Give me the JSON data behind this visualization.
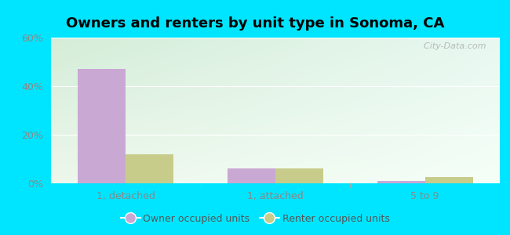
{
  "title": "Owners and renters by unit type in Sonoma, CA",
  "categories": [
    "1, detached",
    "1, attached",
    "5 to 9"
  ],
  "owner_values": [
    47.0,
    6.0,
    1.0
  ],
  "renter_values": [
    12.0,
    6.0,
    2.5
  ],
  "owner_color": "#c9a8d4",
  "renter_color": "#c8cc8a",
  "ylim": [
    0,
    60
  ],
  "yticks": [
    0,
    20,
    40,
    60
  ],
  "ytick_labels": [
    "0%",
    "20%",
    "40%",
    "60%"
  ],
  "bar_width": 0.32,
  "bg_color_topleft": "#d4edd8",
  "bg_color_topright": "#e8f8f0",
  "bg_color_bottomleft": "#edf7ec",
  "bg_color_bottomright": "#f5fff8",
  "outer_background": "#00e5ff",
  "watermark": "  City-Data.com",
  "legend_owner": "Owner occupied units",
  "legend_renter": "Renter occupied units",
  "title_fontsize": 13,
  "axis_fontsize": 9,
  "legend_fontsize": 9,
  "grid_color": "#d8e8d0",
  "tick_label_color": "#888888"
}
